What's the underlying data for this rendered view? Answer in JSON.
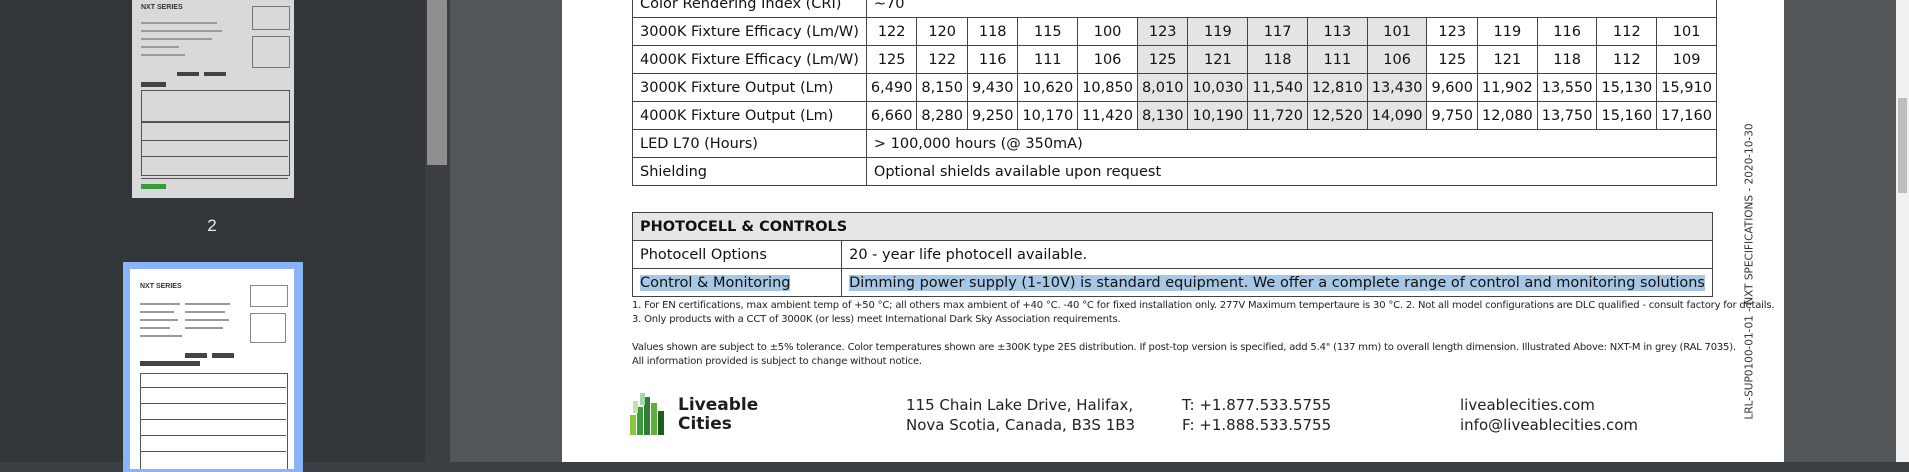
{
  "sidebar": {
    "page_label": "2",
    "thumb_brand": "NXT SERIES"
  },
  "spec_rows": [
    {
      "label": "Color Rendering Index (CRI)",
      "span_value": "~70"
    },
    {
      "label": "3000K Fixture Efficacy (Lm/W)",
      "values": [
        "122",
        "120",
        "118",
        "115",
        "100",
        "123",
        "119",
        "117",
        "113",
        "101",
        "123",
        "119",
        "116",
        "112",
        "101"
      ]
    },
    {
      "label": "4000K Fixture Efficacy (Lm/W)",
      "values": [
        "125",
        "122",
        "116",
        "111",
        "106",
        "125",
        "121",
        "118",
        "111",
        "106",
        "125",
        "121",
        "118",
        "112",
        "109"
      ]
    },
    {
      "label": "3000K Fixture Output (Lm)",
      "values": [
        "6,490",
        "8,150",
        "9,430",
        "10,620",
        "10,850",
        "8,010",
        "10,030",
        "11,540",
        "12,810",
        "13,430",
        "9,600",
        "11,902",
        "13,550",
        "15,130",
        "15,910"
      ]
    },
    {
      "label": "4000K Fixture Output (Lm)",
      "values": [
        "6,660",
        "8,280",
        "9,250",
        "10,170",
        "11,420",
        "8,130",
        "10,190",
        "11,720",
        "12,520",
        "14,090",
        "9,750",
        "12,080",
        "13,750",
        "15,160",
        "17,160"
      ]
    },
    {
      "label": "LED L70 (Hours)",
      "span_value": "> 100,000 hours (@ 350mA)"
    },
    {
      "label": "Shielding",
      "span_value": "Optional shields available upon request"
    }
  ],
  "photocell": {
    "heading": "PHOTOCELL & CONTROLS",
    "rows": [
      {
        "label": "Photocell Options",
        "value": "20 - year life photocell available."
      },
      {
        "label": "Control & Monitoring",
        "value": "Dimming power supply (1-10V) is standard equipment. We offer a complete range of control and monitoring solutions"
      }
    ]
  },
  "notes": {
    "line1": "1. For EN certifications, max ambient temp of +50 °C; all others max ambient of +40 °C. -40 °C for fixed installation only.      277V Maximum tempertaure is 30 °C.      2. Not all model configurations are DLC qualified - consult factory for details.",
    "line2": "3. Only products with a CCT of 3000K (or less) meet International Dark Sky Association requirements.",
    "line3": "Values shown are subject to ±5% tolerance.      Color temperatures shown are ±300K type 2ES distribution.      If post-top version is specified, add 5.4\" (137 mm) to overall length dimension.      Illustrated Above: NXT-M in grey (RAL 7035).",
    "line4": "All information provided is subject to change without notice."
  },
  "footer": {
    "logo_line1": "Liveable",
    "logo_line2": "Cities",
    "address_line1": "115 Chain Lake Drive, Halifax,",
    "address_line2": "Nova Scotia, Canada, B3S 1B3",
    "phone": "T: +1.877.533.5755",
    "fax": "F: +1.888.533.5755",
    "website": "liveablecities.com",
    "email": "info@liveablecities.com"
  },
  "side_code": "LRL-SUP0100-01-01 - NXT SPECIFICATIONS - 2020-10-30",
  "colors": {
    "selection": "#a6c8e6",
    "thumb_active_border": "#8ab4f8",
    "logo_green": "#3a9a3a"
  }
}
